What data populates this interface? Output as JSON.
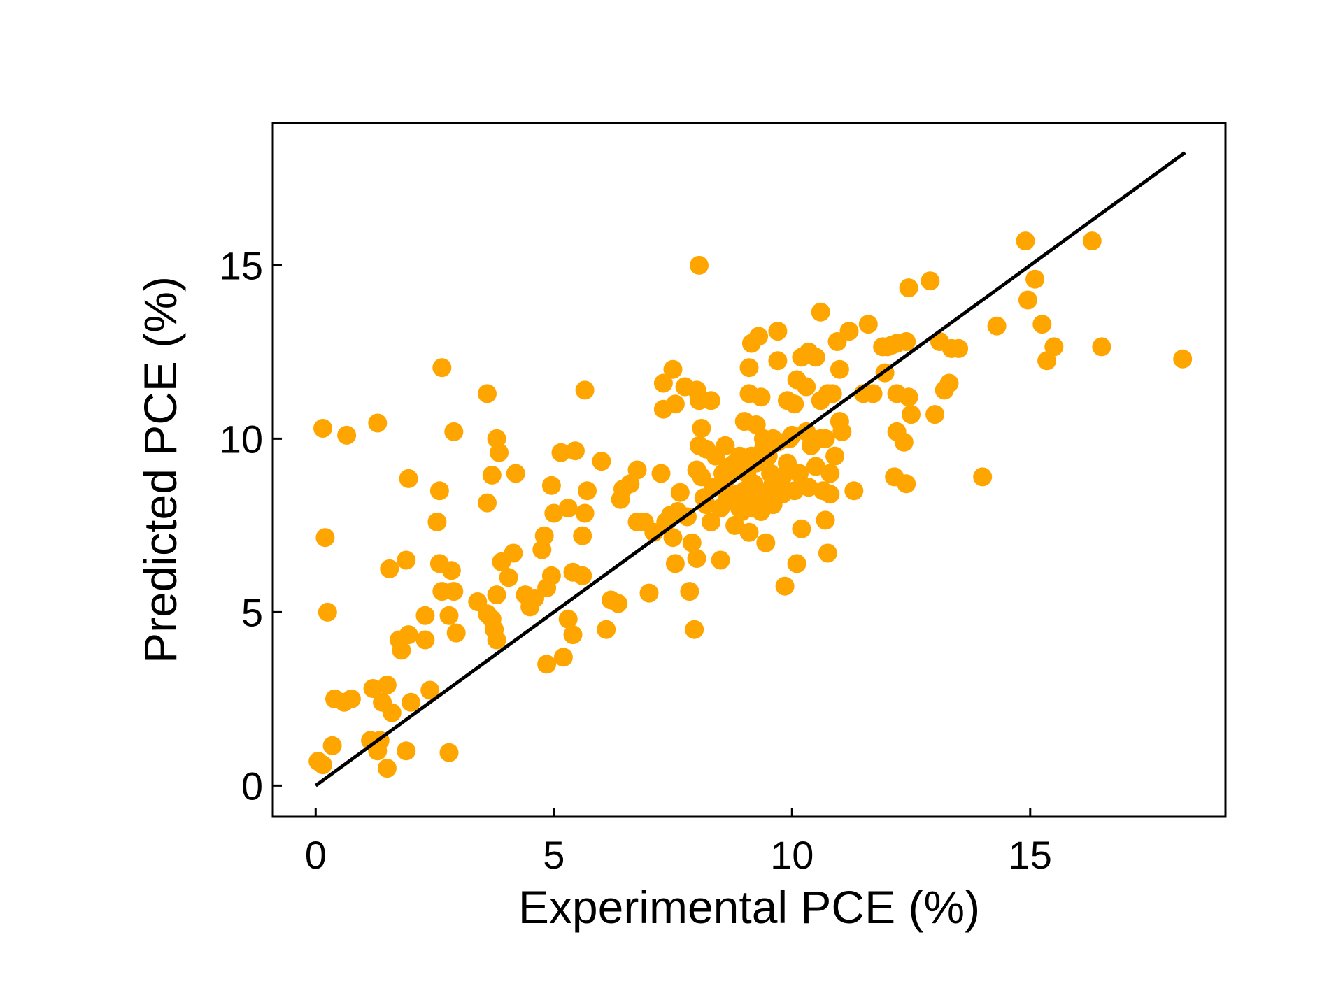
{
  "colors": {
    "points": "#FFA500",
    "fit_line": "#000000",
    "axes": "#000000",
    "background": "#ffffff"
  },
  "chart_data": {
    "type": "scatter",
    "title": "",
    "xlabel": "Experimental PCE (%)",
    "ylabel": "Predicted PCE (%)",
    "xlim": [
      -0.9,
      19.1
    ],
    "ylim": [
      -0.9,
      19.1
    ],
    "xticks": [
      0,
      5,
      10,
      15
    ],
    "yticks": [
      0,
      5,
      10,
      15
    ],
    "xtick_labels": [
      "0",
      "5",
      "10",
      "15"
    ],
    "ytick_labels": [
      "0",
      "5",
      "10",
      "15"
    ],
    "grid": false,
    "legend": null,
    "reference_line": {
      "x": [
        0,
        18.25
      ],
      "y": [
        0,
        18.25
      ]
    },
    "series": [
      {
        "points": [
          [
            0.05,
            0.7
          ],
          [
            0.15,
            0.6
          ],
          [
            0.35,
            1.15
          ],
          [
            0.4,
            2.5
          ],
          [
            0.6,
            2.4
          ],
          [
            0.75,
            2.5
          ],
          [
            1.15,
            1.3
          ],
          [
            1.2,
            2.8
          ],
          [
            1.3,
            1.0
          ],
          [
            1.35,
            1.3
          ],
          [
            1.4,
            2.4
          ],
          [
            1.5,
            2.9
          ],
          [
            1.5,
            0.5
          ],
          [
            1.6,
            2.1
          ],
          [
            1.75,
            4.2
          ],
          [
            1.8,
            3.9
          ],
          [
            1.9,
            1.0
          ],
          [
            1.95,
            4.35
          ],
          [
            2.0,
            2.4
          ],
          [
            2.3,
            4.2
          ],
          [
            2.3,
            4.9
          ],
          [
            2.4,
            2.75
          ],
          [
            2.8,
            0.95
          ],
          [
            2.6,
            6.4
          ],
          [
            2.65,
            5.6
          ],
          [
            2.8,
            4.9
          ],
          [
            2.85,
            6.2
          ],
          [
            2.9,
            5.6
          ],
          [
            2.95,
            4.4
          ],
          [
            2.55,
            7.6
          ],
          [
            2.6,
            8.5
          ],
          [
            3.4,
            5.3
          ],
          [
            3.6,
            4.95
          ],
          [
            3.8,
            5.5
          ],
          [
            3.75,
            4.5
          ],
          [
            3.8,
            4.2
          ],
          [
            3.7,
            4.8
          ],
          [
            3.9,
            6.45
          ],
          [
            4.05,
            6.0
          ],
          [
            4.15,
            6.7
          ],
          [
            4.4,
            5.5
          ],
          [
            4.5,
            5.15
          ],
          [
            4.6,
            5.4
          ],
          [
            4.75,
            6.8
          ],
          [
            4.8,
            7.2
          ],
          [
            4.85,
            5.7
          ],
          [
            4.95,
            6.05
          ],
          [
            4.85,
            3.5
          ],
          [
            5.2,
            3.7
          ],
          [
            5.3,
            4.8
          ],
          [
            5.4,
            4.35
          ],
          [
            5.4,
            6.15
          ],
          [
            5.6,
            6.05
          ],
          [
            5.6,
            7.2
          ],
          [
            5.65,
            7.85
          ],
          [
            5.7,
            8.5
          ],
          [
            5.0,
            7.85
          ],
          [
            5.3,
            8.0
          ],
          [
            6.1,
            4.5
          ],
          [
            6.2,
            5.35
          ],
          [
            6.35,
            5.25
          ],
          [
            6.4,
            8.25
          ],
          [
            6.45,
            8.55
          ],
          [
            6.6,
            8.7
          ],
          [
            6.75,
            7.6
          ],
          [
            6.75,
            9.1
          ],
          [
            6.9,
            7.6
          ],
          [
            7.0,
            5.55
          ],
          [
            7.1,
            7.3
          ],
          [
            7.25,
            9.0
          ],
          [
            7.35,
            7.6
          ],
          [
            7.45,
            7.8
          ],
          [
            7.5,
            7.15
          ],
          [
            7.55,
            6.4
          ],
          [
            7.6,
            7.9
          ],
          [
            7.65,
            8.45
          ],
          [
            7.8,
            7.75
          ],
          [
            7.85,
            5.6
          ],
          [
            7.9,
            7.0
          ],
          [
            7.95,
            4.5
          ],
          [
            8.0,
            6.55
          ],
          [
            8.0,
            9.1
          ],
          [
            8.05,
            9.8
          ],
          [
            8.1,
            8.9
          ],
          [
            8.15,
            8.3
          ],
          [
            8.2,
            8.1
          ],
          [
            8.3,
            7.6
          ],
          [
            8.35,
            8.6
          ],
          [
            8.4,
            9.5
          ],
          [
            8.5,
            6.5
          ],
          [
            8.5,
            8.0
          ],
          [
            8.6,
            8.8
          ],
          [
            8.7,
            9.2
          ],
          [
            8.8,
            7.5
          ],
          [
            8.85,
            8.4
          ],
          [
            8.9,
            9.5
          ],
          [
            8.95,
            7.9
          ],
          [
            9.0,
            8.5
          ],
          [
            9.05,
            9.0
          ],
          [
            9.1,
            7.3
          ],
          [
            9.15,
            8.0
          ],
          [
            9.2,
            8.7
          ],
          [
            9.25,
            9.3
          ],
          [
            9.3,
            8.3
          ],
          [
            9.35,
            7.9
          ],
          [
            9.4,
            9.7
          ],
          [
            9.45,
            7.0
          ],
          [
            9.5,
            8.5
          ],
          [
            9.55,
            9.0
          ],
          [
            9.6,
            8.1
          ],
          [
            9.7,
            9.9
          ],
          [
            9.8,
            8.4
          ],
          [
            9.85,
            5.75
          ],
          [
            9.9,
            9.3
          ],
          [
            9.95,
            10.0
          ],
          [
            10.05,
            8.5
          ],
          [
            10.1,
            6.4
          ],
          [
            10.15,
            9.0
          ],
          [
            10.2,
            7.4
          ],
          [
            10.3,
            10.2
          ],
          [
            10.35,
            8.6
          ],
          [
            10.4,
            9.8
          ],
          [
            10.5,
            9.2
          ],
          [
            10.6,
            10.0
          ],
          [
            10.65,
            8.5
          ],
          [
            10.7,
            7.65
          ],
          [
            10.75,
            6.7
          ],
          [
            10.8,
            9.0
          ],
          [
            10.8,
            8.4
          ],
          [
            10.9,
            9.5
          ],
          [
            11.0,
            10.5
          ],
          [
            11.05,
            10.2
          ],
          [
            11.3,
            8.5
          ],
          [
            11.5,
            11.3
          ],
          [
            11.7,
            11.3
          ],
          [
            11.9,
            12.65
          ],
          [
            12.1,
            12.7
          ],
          [
            12.15,
            8.9
          ],
          [
            12.2,
            10.2
          ],
          [
            12.2,
            11.3
          ],
          [
            12.35,
            9.9
          ],
          [
            12.4,
            8.7
          ],
          [
            12.45,
            11.2
          ],
          [
            12.5,
            10.7
          ],
          [
            12.4,
            12.8
          ],
          [
            12.45,
            14.35
          ],
          [
            12.9,
            14.55
          ],
          [
            13.0,
            10.7
          ],
          [
            13.1,
            12.8
          ],
          [
            13.2,
            11.4
          ],
          [
            13.3,
            11.6
          ],
          [
            13.35,
            12.6
          ],
          [
            13.5,
            12.6
          ],
          [
            14.0,
            8.9
          ],
          [
            14.3,
            13.25
          ],
          [
            14.9,
            15.7
          ],
          [
            14.95,
            14.0
          ],
          [
            15.1,
            14.6
          ],
          [
            15.25,
            13.3
          ],
          [
            15.35,
            12.25
          ],
          [
            15.5,
            12.65
          ],
          [
            16.3,
            15.7
          ],
          [
            16.5,
            12.65
          ],
          [
            18.2,
            12.3
          ],
          [
            0.15,
            10.3
          ],
          [
            0.2,
            7.15
          ],
          [
            0.25,
            5.0
          ],
          [
            0.65,
            10.1
          ],
          [
            1.3,
            10.45
          ],
          [
            1.55,
            6.25
          ],
          [
            1.9,
            6.5
          ],
          [
            1.95,
            8.85
          ],
          [
            2.65,
            12.05
          ],
          [
            2.9,
            10.2
          ],
          [
            3.6,
            11.3
          ],
          [
            3.6,
            8.15
          ],
          [
            3.7,
            8.95
          ],
          [
            3.8,
            10.0
          ],
          [
            3.85,
            9.6
          ],
          [
            4.2,
            9.0
          ],
          [
            4.95,
            8.65
          ],
          [
            5.15,
            9.6
          ],
          [
            5.45,
            9.65
          ],
          [
            5.65,
            11.4
          ],
          [
            6.0,
            9.35
          ],
          [
            7.3,
            11.6
          ],
          [
            7.5,
            12.0
          ],
          [
            7.3,
            10.85
          ],
          [
            7.55,
            11.0
          ],
          [
            7.75,
            11.5
          ],
          [
            8.0,
            11.4
          ],
          [
            8.05,
            11.1
          ],
          [
            8.1,
            10.3
          ],
          [
            8.3,
            11.1
          ],
          [
            8.05,
            15.0
          ],
          [
            8.6,
            9.8
          ],
          [
            8.8,
            9.3
          ],
          [
            9.0,
            10.5
          ],
          [
            9.1,
            11.3
          ],
          [
            9.1,
            12.05
          ],
          [
            9.15,
            12.75
          ],
          [
            9.3,
            12.95
          ],
          [
            9.35,
            11.2
          ],
          [
            9.5,
            9.5
          ],
          [
            9.6,
            10.0
          ],
          [
            9.7,
            12.25
          ],
          [
            9.7,
            13.1
          ],
          [
            9.9,
            11.1
          ],
          [
            10.05,
            11.0
          ],
          [
            10.1,
            11.7
          ],
          [
            10.2,
            12.35
          ],
          [
            10.3,
            11.5
          ],
          [
            10.35,
            12.5
          ],
          [
            10.5,
            12.35
          ],
          [
            10.6,
            13.65
          ],
          [
            10.6,
            11.1
          ],
          [
            10.7,
            10.0
          ],
          [
            10.75,
            11.3
          ],
          [
            10.85,
            11.3
          ],
          [
            10.95,
            12.8
          ],
          [
            11.0,
            12.0
          ],
          [
            11.2,
            13.1
          ],
          [
            11.6,
            13.3
          ],
          [
            11.95,
            11.9
          ],
          [
            12.0,
            12.65
          ],
          [
            12.2,
            12.75
          ],
          [
            8.2,
            9.7
          ],
          [
            8.75,
            9.1
          ],
          [
            9.4,
            10.0
          ],
          [
            9.8,
            8.9
          ],
          [
            10.0,
            10.1
          ],
          [
            8.55,
            9.0
          ],
          [
            9.25,
            10.4
          ],
          [
            8.9,
            8.0
          ],
          [
            9.6,
            8.7
          ],
          [
            9.05,
            8.2
          ],
          [
            8.65,
            8.3
          ],
          [
            9.15,
            9.5
          ]
        ]
      }
    ]
  }
}
